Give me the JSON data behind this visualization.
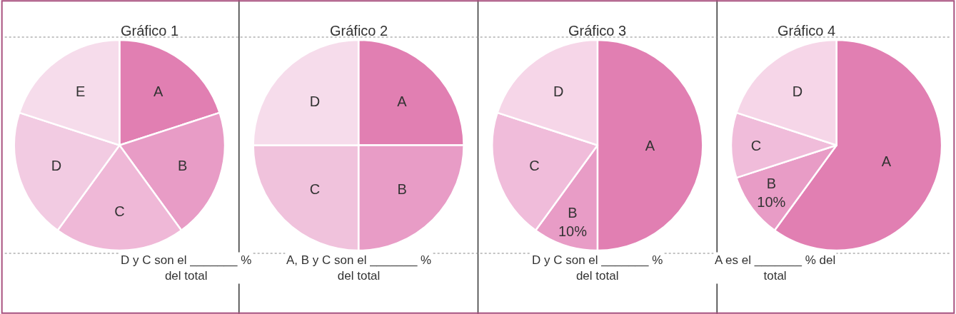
{
  "chart_data": [
    {
      "type": "pie",
      "title": "Gráfico 1",
      "categories": [
        "A",
        "B",
        "C",
        "D",
        "E"
      ],
      "values": [
        20,
        20,
        20,
        20,
        20
      ],
      "colors": [
        "#e17fb2",
        "#e89cc6",
        "#efb8d7",
        "#f2cbe2",
        "#f6dceb"
      ],
      "annotations": [
        "D y C son el _______ %\ndel total"
      ]
    },
    {
      "type": "pie",
      "title": "Gráfico 2",
      "categories": [
        "A",
        "B",
        "C",
        "D"
      ],
      "values": [
        25,
        25,
        25,
        25
      ],
      "colors": [
        "#e17fb2",
        "#e89cc6",
        "#f0c2dc",
        "#f6dceb"
      ],
      "annotations": [
        "A, B y C son el _______ %\ndel total"
      ]
    },
    {
      "type": "pie",
      "title": "Gráfico 3",
      "categories": [
        "A",
        "B",
        "C",
        "D"
      ],
      "values": [
        50,
        10,
        20,
        20
      ],
      "colors": [
        "#e17fb2",
        "#e89cc6",
        "#f0bcda",
        "#f6d6e8"
      ],
      "value_labels": [
        null,
        "10%",
        null,
        null
      ],
      "annotations": [
        "D y C son el _______ %\ndel total"
      ]
    },
    {
      "type": "pie",
      "title": "Gráfico 4",
      "categories": [
        "A",
        "B",
        "C",
        "D"
      ],
      "values": [
        60,
        10,
        10,
        20
      ],
      "colors": [
        "#e17fb2",
        "#e89cc6",
        "#f0bcda",
        "#f6d6e8"
      ],
      "value_labels": [
        null,
        "10%",
        null,
        null
      ],
      "annotations": [
        "A es el _______ % del\ntotal"
      ]
    }
  ]
}
